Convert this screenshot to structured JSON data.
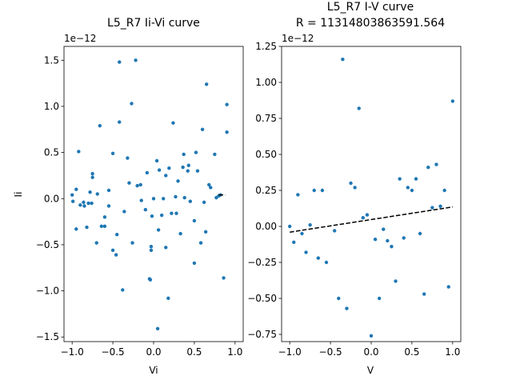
{
  "figure": {
    "background": "#ffffff",
    "marker_color": "#1f77b4",
    "fit_color": "#000000"
  },
  "chart_data": [
    {
      "type": "scatter",
      "title": "L5_R7 Ii-Vi curve",
      "xlabel": "Vi",
      "ylabel": "Ii",
      "y_offset_text": "1e−12",
      "xlim": [
        -1.1,
        1.1
      ],
      "ylim": [
        -1.55,
        1.65
      ],
      "xticks": [
        -1.0,
        -0.5,
        0.0,
        0.5,
        1.0
      ],
      "xtick_labels": [
        "−1.0",
        "−0.5",
        "0.0",
        "0.5",
        "1.0"
      ],
      "yticks": [
        -1.5,
        -1.0,
        -0.5,
        0.0,
        0.5,
        1.0,
        1.5
      ],
      "ytick_labels": [
        "−1.5",
        "−1.0",
        "−0.5",
        "0.0",
        "0.5",
        "1.0",
        "1.5"
      ],
      "grid": false,
      "points": [
        [
          -1.0,
          0.04
        ],
        [
          -0.99,
          -0.03
        ],
        [
          -0.95,
          0.1
        ],
        [
          -0.95,
          -0.33
        ],
        [
          -0.92,
          0.51
        ],
        [
          -0.9,
          -0.07
        ],
        [
          -0.86,
          -0.04
        ],
        [
          -0.85,
          -0.08
        ],
        [
          -0.82,
          -0.31
        ],
        [
          -0.8,
          -0.05
        ],
        [
          -0.78,
          0.07
        ],
        [
          -0.76,
          -0.05
        ],
        [
          -0.75,
          0.23
        ],
        [
          -0.75,
          0.27
        ],
        [
          -0.7,
          -0.48
        ],
        [
          -0.69,
          0.05
        ],
        [
          -0.66,
          0.79
        ],
        [
          -0.64,
          -0.3
        ],
        [
          -0.6,
          -0.2
        ],
        [
          -0.6,
          -0.3
        ],
        [
          -0.55,
          0.09
        ],
        [
          -0.55,
          -0.08
        ],
        [
          -0.5,
          0.49
        ],
        [
          -0.5,
          -0.56
        ],
        [
          -0.46,
          -0.61
        ],
        [
          -0.45,
          -0.39
        ],
        [
          -0.42,
          0.83
        ],
        [
          -0.42,
          1.48
        ],
        [
          -0.38,
          -0.99
        ],
        [
          -0.36,
          -0.14
        ],
        [
          -0.32,
          0.44
        ],
        [
          -0.3,
          0.17
        ],
        [
          -0.27,
          1.03
        ],
        [
          -0.26,
          -0.48
        ],
        [
          -0.22,
          1.5
        ],
        [
          -0.2,
          0.14
        ],
        [
          -0.16,
          0.15
        ],
        [
          -0.15,
          -0.02
        ],
        [
          -0.1,
          -0.12
        ],
        [
          -0.08,
          0.28
        ],
        [
          -0.05,
          -0.87
        ],
        [
          -0.04,
          -0.88
        ],
        [
          -0.03,
          -0.56
        ],
        [
          -0.03,
          -0.52
        ],
        [
          -0.02,
          -0.19
        ],
        [
          0.0,
          0.0
        ],
        [
          0.04,
          0.41
        ],
        [
          0.05,
          -1.41
        ],
        [
          0.06,
          -0.34
        ],
        [
          0.07,
          0.31
        ],
        [
          0.1,
          -0.18
        ],
        [
          0.12,
          0.0
        ],
        [
          0.15,
          -0.53
        ],
        [
          0.15,
          0.25
        ],
        [
          0.18,
          -1.08
        ],
        [
          0.19,
          0.33
        ],
        [
          0.22,
          -0.16
        ],
        [
          0.24,
          0.82
        ],
        [
          0.27,
          0.02
        ],
        [
          0.28,
          -0.16
        ],
        [
          0.3,
          0.19
        ],
        [
          0.33,
          -0.38
        ],
        [
          0.36,
          0.34
        ],
        [
          0.37,
          0.48
        ],
        [
          0.38,
          0.01
        ],
        [
          0.42,
          0.3
        ],
        [
          0.43,
          0.36
        ],
        [
          0.45,
          -0.03
        ],
        [
          0.5,
          -0.7
        ],
        [
          0.5,
          -0.24
        ],
        [
          0.52,
          0.5
        ],
        [
          0.54,
          0.3
        ],
        [
          0.58,
          -0.48
        ],
        [
          0.6,
          0.75
        ],
        [
          0.62,
          -0.04
        ],
        [
          0.64,
          -0.36
        ],
        [
          0.65,
          1.24
        ],
        [
          0.68,
          0.15
        ],
        [
          0.7,
          0.12
        ],
        [
          0.75,
          0.48
        ],
        [
          0.77,
          0.01
        ],
        [
          0.8,
          0.03
        ],
        [
          0.82,
          0.04
        ],
        [
          0.86,
          -0.86
        ],
        [
          0.9,
          0.72
        ],
        [
          0.9,
          1.02
        ]
      ],
      "fit_line": [
        [
          0.8,
          0.04
        ],
        [
          0.88,
          0.04
        ]
      ]
    },
    {
      "type": "scatter",
      "title": "L5_R7 I-V curve",
      "subtitle": "R = 11314803863591.564",
      "xlabel": "V",
      "ylabel": "",
      "y_offset_text": "1e−12",
      "xlim": [
        -1.1,
        1.1
      ],
      "ylim": [
        -0.8,
        1.25
      ],
      "xticks": [
        -1.0,
        -0.5,
        0.0,
        0.5,
        1.0
      ],
      "xtick_labels": [
        "−1.0",
        "−0.5",
        "0.0",
        "0.5",
        "1.0"
      ],
      "yticks": [
        -0.75,
        -0.5,
        -0.25,
        0.0,
        0.25,
        0.5,
        0.75,
        1.0,
        1.25
      ],
      "ytick_labels": [
        "−0.75",
        "−0.50",
        "−0.25",
        "0.00",
        "0.25",
        "0.50",
        "0.75",
        "1.00",
        "1.25"
      ],
      "grid": false,
      "points": [
        [
          -1.0,
          0.0
        ],
        [
          -0.95,
          -0.11
        ],
        [
          -0.9,
          0.22
        ],
        [
          -0.85,
          -0.05
        ],
        [
          -0.8,
          -0.18
        ],
        [
          -0.75,
          0.01
        ],
        [
          -0.7,
          0.25
        ],
        [
          -0.65,
          -0.22
        ],
        [
          -0.6,
          0.25
        ],
        [
          -0.55,
          -0.25
        ],
        [
          -0.45,
          -0.03
        ],
        [
          -0.4,
          -0.5
        ],
        [
          -0.35,
          1.16
        ],
        [
          -0.3,
          -0.57
        ],
        [
          -0.25,
          0.3
        ],
        [
          -0.2,
          0.27
        ],
        [
          -0.15,
          0.82
        ],
        [
          -0.1,
          0.06
        ],
        [
          -0.05,
          0.08
        ],
        [
          0.0,
          -0.76
        ],
        [
          0.05,
          -0.09
        ],
        [
          0.1,
          -0.5
        ],
        [
          0.15,
          -0.02
        ],
        [
          0.2,
          -0.1
        ],
        [
          0.25,
          -0.14
        ],
        [
          0.3,
          -0.38
        ],
        [
          0.35,
          0.33
        ],
        [
          0.4,
          -0.08
        ],
        [
          0.45,
          0.27
        ],
        [
          0.5,
          0.25
        ],
        [
          0.55,
          0.33
        ],
        [
          0.6,
          -0.05
        ],
        [
          0.65,
          -0.47
        ],
        [
          0.7,
          0.41
        ],
        [
          0.75,
          0.13
        ],
        [
          0.8,
          0.43
        ],
        [
          0.85,
          0.14
        ],
        [
          0.9,
          0.25
        ],
        [
          0.95,
          -0.42
        ],
        [
          1.0,
          0.87
        ]
      ],
      "fit_line": [
        [
          -1.0,
          -0.04
        ],
        [
          1.0,
          0.135
        ]
      ]
    }
  ]
}
